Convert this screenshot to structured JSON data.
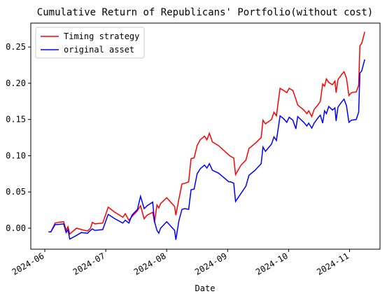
{
  "chart_data": {
    "type": "line",
    "title": "Cumulative Return of Republicans' Portfolio(without cost)",
    "x_label": "Date",
    "x": [
      6.06,
      6.1,
      6.17,
      6.22,
      6.31,
      6.35,
      6.38,
      6.41,
      6.52,
      6.6,
      6.7,
      6.75,
      6.78,
      6.82,
      6.95,
      7.04,
      7.15,
      7.28,
      7.32,
      7.38,
      7.43,
      7.52,
      7.57,
      7.63,
      7.68,
      7.77,
      7.8,
      7.84,
      7.87,
      7.9,
      8.0,
      8.13,
      8.15,
      8.2,
      8.25,
      8.3,
      8.36,
      8.4,
      8.45,
      8.5,
      8.55,
      8.62,
      8.66,
      8.7,
      8.75,
      8.85,
      9.02,
      9.05,
      9.1,
      9.13,
      9.22,
      9.3,
      9.35,
      9.45,
      9.55,
      9.58,
      9.62,
      9.72,
      9.76,
      9.8,
      9.86,
      9.92,
      9.97,
      10.01,
      10.07,
      10.12,
      10.15,
      10.25,
      10.3,
      10.33,
      10.38,
      10.42,
      10.48,
      10.52,
      10.56,
      10.59,
      10.62,
      10.66,
      10.72,
      10.76,
      10.78,
      10.81,
      10.87,
      10.91,
      10.95,
      10.99,
      11.03,
      11.11,
      11.15,
      11.17,
      11.2,
      11.25
    ],
    "series": [
      {
        "name": "Timing strategy",
        "color": "#ff0000",
        "values": [
          -0.005,
          -0.005,
          0.007,
          0.008,
          0.009,
          -0.003,
          0.002,
          -0.008,
          0.0,
          -0.002,
          -0.004,
          0.0,
          0.008,
          0.006,
          0.007,
          0.029,
          0.022,
          0.015,
          0.02,
          0.011,
          0.016,
          0.024,
          0.031,
          0.013,
          0.018,
          0.022,
          0.008,
          0.032,
          0.028,
          0.034,
          0.042,
          0.03,
          0.018,
          0.04,
          0.061,
          0.062,
          0.064,
          0.096,
          0.097,
          0.114,
          0.122,
          0.127,
          0.122,
          0.131,
          0.119,
          0.114,
          0.101,
          0.099,
          0.097,
          0.074,
          0.087,
          0.094,
          0.11,
          0.117,
          0.125,
          0.149,
          0.144,
          0.15,
          0.16,
          0.155,
          0.193,
          0.19,
          0.187,
          0.193,
          0.19,
          0.178,
          0.17,
          0.163,
          0.158,
          0.162,
          0.154,
          0.164,
          0.17,
          0.175,
          0.199,
          0.196,
          0.206,
          0.201,
          0.198,
          0.203,
          0.187,
          0.205,
          0.212,
          0.216,
          0.207,
          0.183,
          0.187,
          0.188,
          0.197,
          0.252,
          0.255,
          0.271
        ]
      },
      {
        "name": "original asset",
        "color": "#0000ff",
        "values": [
          -0.005,
          -0.005,
          0.005,
          0.005,
          0.006,
          -0.006,
          -0.002,
          -0.015,
          -0.01,
          -0.006,
          -0.007,
          -0.003,
          -0.001,
          -0.003,
          -0.002,
          0.019,
          0.013,
          0.007,
          0.011,
          0.007,
          0.018,
          0.026,
          0.044,
          0.027,
          0.031,
          0.036,
          0.009,
          -0.003,
          -0.007,
          0.0,
          0.009,
          -0.003,
          -0.016,
          0.01,
          0.026,
          0.027,
          0.026,
          0.053,
          0.054,
          0.075,
          0.082,
          0.087,
          0.083,
          0.089,
          0.08,
          0.076,
          0.064,
          0.064,
          0.062,
          0.037,
          0.048,
          0.058,
          0.073,
          0.08,
          0.089,
          0.112,
          0.106,
          0.116,
          0.126,
          0.121,
          0.155,
          0.151,
          0.146,
          0.153,
          0.149,
          0.137,
          0.154,
          0.146,
          0.141,
          0.145,
          0.138,
          0.145,
          0.152,
          0.156,
          0.145,
          0.162,
          0.158,
          0.168,
          0.163,
          0.166,
          0.148,
          0.167,
          0.174,
          0.178,
          0.169,
          0.146,
          0.149,
          0.15,
          0.16,
          0.214,
          0.217,
          0.233
        ]
      }
    ],
    "xlim": [
      5.77,
      11.5
    ],
    "xticks": [
      {
        "value": 6,
        "label": "2024-06"
      },
      {
        "value": 7,
        "label": "2024-07"
      },
      {
        "value": 8,
        "label": "2024-08"
      },
      {
        "value": 9,
        "label": "2024-09"
      },
      {
        "value": 10,
        "label": "2024-10"
      },
      {
        "value": 11,
        "label": "2024-11"
      }
    ],
    "ylim": [
      -0.029,
      0.283
    ],
    "yticks": [
      {
        "value": 0,
        "label": "0.00"
      },
      0.05,
      {
        "value": 0.1,
        "label": "0.10"
      },
      0.15,
      {
        "value": 0.2,
        "label": "0.20"
      },
      0.25
    ],
    "legend": "upper left",
    "grid": false
  }
}
